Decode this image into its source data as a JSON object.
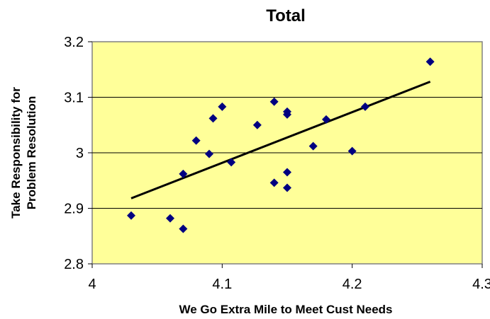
{
  "chart_data": {
    "type": "scatter",
    "title": "Total",
    "xlabel": "We Go Extra Mile to Meet Cust Needs",
    "ylabel_lines": [
      "Take Responsibility for",
      "Problem Resolution"
    ],
    "xlim": [
      4,
      4.3
    ],
    "ylim": [
      2.8,
      3.2
    ],
    "x_ticks": [
      "4",
      "4.1",
      "4.2",
      "4.3"
    ],
    "y_ticks": [
      "2.8",
      "2.9",
      "3",
      "3.1",
      "3.2"
    ],
    "grid": "horizontal",
    "legend": "none",
    "colors": {
      "plot_background": "#FFFF99",
      "marker": "#000080",
      "trendline": "#000000",
      "gridline": "#000000"
    },
    "series": [
      {
        "points": [
          {
            "x": 4.03,
            "y": 2.887
          },
          {
            "x": 4.06,
            "y": 2.882
          },
          {
            "x": 4.07,
            "y": 2.863
          },
          {
            "x": 4.07,
            "y": 2.962
          },
          {
            "x": 4.08,
            "y": 3.022
          },
          {
            "x": 4.09,
            "y": 2.998
          },
          {
            "x": 4.093,
            "y": 3.062
          },
          {
            "x": 4.1,
            "y": 3.083
          },
          {
            "x": 4.107,
            "y": 2.983
          },
          {
            "x": 4.127,
            "y": 3.05
          },
          {
            "x": 4.14,
            "y": 3.092
          },
          {
            "x": 4.14,
            "y": 2.946
          },
          {
            "x": 4.15,
            "y": 3.074
          },
          {
            "x": 4.15,
            "y": 3.069
          },
          {
            "x": 4.15,
            "y": 2.965
          },
          {
            "x": 4.15,
            "y": 2.937
          },
          {
            "x": 4.17,
            "y": 3.012
          },
          {
            "x": 4.18,
            "y": 3.06
          },
          {
            "x": 4.2,
            "y": 3.003
          },
          {
            "x": 4.21,
            "y": 3.083
          },
          {
            "x": 4.26,
            "y": 3.164
          }
        ]
      }
    ],
    "trendline": {
      "type": "linear",
      "x": [
        4.03,
        4.26
      ],
      "y": [
        2.918,
        3.128
      ]
    }
  }
}
